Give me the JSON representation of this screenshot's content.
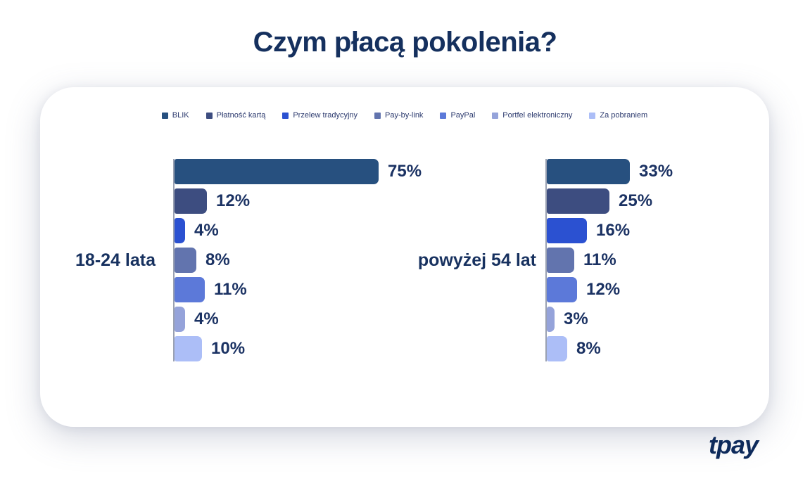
{
  "page": {
    "title": "Czym płacą pokolenia?",
    "brand": "tpay"
  },
  "chart_data": {
    "type": "bar",
    "orientation": "horizontal",
    "title": "Czym płacą pokolenia?",
    "unit": "%",
    "legend_position": "top",
    "value_labels": true,
    "grid": false,
    "categories": [
      "BLIK",
      "Płatność kartą",
      "Przelew tradycyjny",
      "Pay-by-link",
      "PayPal",
      "Portfel elektroniczny",
      "Za pobraniem"
    ],
    "colors": [
      "#27507f",
      "#3d4d80",
      "#2b51d1",
      "#6274ae",
      "#5c79d9",
      "#95a3da",
      "#acbef7"
    ],
    "series": [
      {
        "name": "18-24 lata",
        "values": [
          75,
          12,
          4,
          8,
          11,
          4,
          10
        ]
      },
      {
        "name": "powyżej 54 lat",
        "values": [
          33,
          25,
          16,
          11,
          12,
          3,
          8
        ]
      }
    ]
  }
}
